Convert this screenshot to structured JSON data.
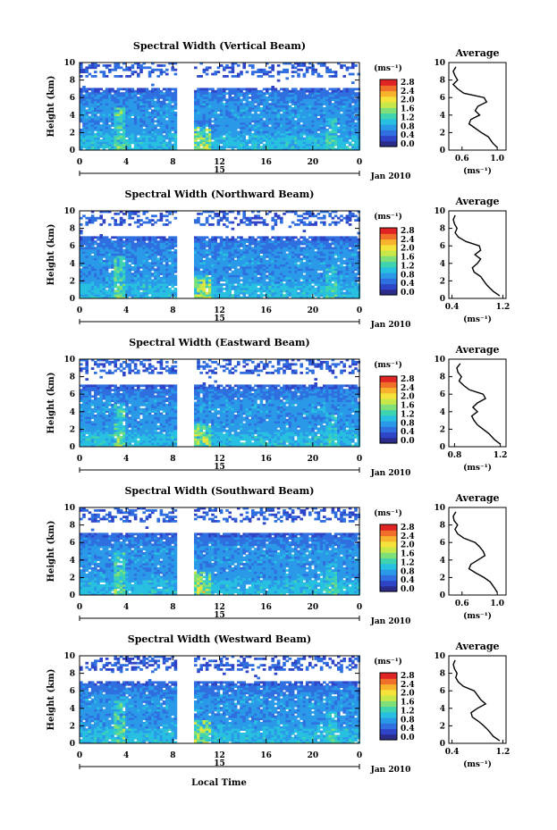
{
  "figure": {
    "xlabel": "Local Time",
    "date_label": "Jan 2010",
    "day_label": "15",
    "colorbar_unit": "(ms⁻¹)",
    "colorbar_ticks": [
      "0.0",
      "0.4",
      "0.8",
      "1.2",
      "1.6",
      "2.0",
      "2.4",
      "2.8"
    ],
    "colormap": [
      "#2b2b8a",
      "#2e45c8",
      "#2f6fe0",
      "#2a9ae8",
      "#28c0e0",
      "#3fd3b0",
      "#7fe07a",
      "#c8e84a",
      "#f5e23a",
      "#f7b22e",
      "#f0702a",
      "#e02424"
    ],
    "height_ticks": [
      "0",
      "2",
      "4",
      "6",
      "8",
      "10"
    ],
    "time_ticks": [
      "0",
      "4",
      "8",
      "12",
      "16",
      "20",
      "0"
    ],
    "average_title": "Average",
    "average_xlabel": "(ms⁻¹)"
  },
  "chart_data": [
    {
      "type": "heatmap",
      "title": "Spectral Width (Vertical Beam)",
      "xlabel": "Local Time",
      "ylabel": "Height (km)",
      "xlim": [
        0,
        24
      ],
      "ylim": [
        0,
        10
      ],
      "data_gap": [
        8.2,
        9.7
      ],
      "avg_xticks": [
        "0.6",
        "1.0"
      ],
      "avg_xlim": [
        0.45,
        1.1
      ],
      "avg_profile": {
        "height": [
          0.3,
          0.8,
          1.5,
          2.0,
          2.5,
          3.0,
          3.5,
          4.0,
          4.5,
          5.0,
          5.5,
          6.0,
          6.5,
          7.0,
          7.5,
          8.0,
          8.5,
          9.0,
          9.5
        ],
        "width": [
          1.0,
          0.95,
          0.9,
          0.82,
          0.75,
          0.68,
          0.7,
          0.8,
          0.75,
          0.78,
          0.88,
          0.85,
          0.62,
          0.55,
          0.5,
          0.55,
          0.52,
          0.5,
          0.53
        ]
      }
    },
    {
      "type": "heatmap",
      "title": "Spectral Width (Northward Beam)",
      "xlabel": "Local Time",
      "ylabel": "Height (km)",
      "xlim": [
        0,
        24
      ],
      "ylim": [
        0,
        10
      ],
      "data_gap": [
        8.2,
        9.7
      ],
      "avg_xticks": [
        "0.4",
        "1.2"
      ],
      "avg_xlim": [
        0.35,
        1.25
      ],
      "avg_profile": {
        "height": [
          0.3,
          0.8,
          1.5,
          2.0,
          2.5,
          3.0,
          3.5,
          4.0,
          4.5,
          5.0,
          5.5,
          6.0,
          6.5,
          7.0,
          7.5,
          8.0,
          8.5,
          9.0,
          9.5
        ],
        "width": [
          1.15,
          1.05,
          0.95,
          0.9,
          0.85,
          0.75,
          0.72,
          0.8,
          0.85,
          0.76,
          0.85,
          0.83,
          0.62,
          0.5,
          0.45,
          0.48,
          0.44,
          0.42,
          0.45
        ]
      }
    },
    {
      "type": "heatmap",
      "title": "Spectral Width (Eastward Beam)",
      "xlabel": "Local Time",
      "ylabel": "Height (km)",
      "xlim": [
        0,
        24
      ],
      "ylim": [
        0,
        10
      ],
      "data_gap": [
        8.2,
        9.7
      ],
      "avg_xticks": [
        "0.8",
        "1.2"
      ],
      "avg_xlim": [
        0.75,
        1.25
      ],
      "avg_profile": {
        "height": [
          0.3,
          0.8,
          1.5,
          2.0,
          2.5,
          3.0,
          3.5,
          4.0,
          4.5,
          5.0,
          5.5,
          6.0,
          6.5,
          7.0,
          7.5,
          8.0,
          8.5,
          9.0,
          9.5
        ],
        "width": [
          1.2,
          1.15,
          1.1,
          1.05,
          1.0,
          0.97,
          0.95,
          1.0,
          0.96,
          1.0,
          1.07,
          1.05,
          0.93,
          0.88,
          0.84,
          0.86,
          0.83,
          0.82,
          0.85
        ]
      }
    },
    {
      "type": "heatmap",
      "title": "Spectral Width (Southward Beam)",
      "xlabel": "Local Time",
      "ylabel": "Height (km)",
      "xlim": [
        0,
        24
      ],
      "ylim": [
        0,
        10
      ],
      "data_gap": [
        8.2,
        9.7
      ],
      "avg_xticks": [
        "0.6",
        "1.0"
      ],
      "avg_xlim": [
        0.45,
        1.1
      ],
      "avg_profile": {
        "height": [
          0.3,
          0.8,
          1.5,
          2.0,
          2.5,
          3.0,
          3.5,
          4.0,
          4.5,
          5.0,
          5.5,
          6.0,
          6.5,
          7.0,
          7.5,
          8.0,
          8.5,
          9.0,
          9.5
        ],
        "width": [
          1.0,
          0.97,
          0.92,
          0.85,
          0.76,
          0.68,
          0.7,
          0.78,
          0.86,
          0.84,
          0.8,
          0.75,
          0.62,
          0.55,
          0.52,
          0.55,
          0.51,
          0.5,
          0.53
        ]
      }
    },
    {
      "type": "heatmap",
      "title": "Spectral Width (Westward Beam)",
      "xlabel": "Local Time",
      "ylabel": "Height (km)",
      "xlim": [
        0,
        24
      ],
      "ylim": [
        0,
        10
      ],
      "data_gap": [
        8.2,
        9.7
      ],
      "avg_xticks": [
        "0.4",
        "1.2"
      ],
      "avg_xlim": [
        0.35,
        1.25
      ],
      "avg_profile": {
        "height": [
          0.3,
          0.8,
          1.5,
          2.0,
          2.5,
          3.0,
          3.5,
          4.0,
          4.5,
          5.0,
          5.5,
          6.0,
          6.5,
          7.0,
          7.5,
          8.0,
          8.5,
          9.0,
          9.5
        ],
        "width": [
          1.15,
          1.05,
          0.97,
          0.9,
          0.82,
          0.72,
          0.7,
          0.8,
          0.93,
          0.85,
          0.8,
          0.75,
          0.58,
          0.5,
          0.46,
          0.48,
          0.44,
          0.42,
          0.45
        ]
      }
    }
  ]
}
